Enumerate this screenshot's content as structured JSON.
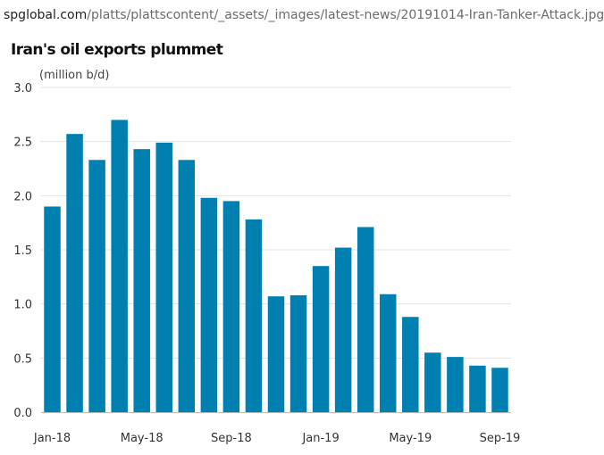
{
  "address_bar": {
    "host": "spglobal.com",
    "path": "/platts/plattscontent/_assets/_images/latest-news/20191014-Iran-Tanker-Attack.jpg"
  },
  "chart_data": {
    "type": "bar",
    "title": "Iran's oil exports plummet",
    "ylabel": "(million b/d)",
    "xlabel": "",
    "ylim": [
      0,
      3.0
    ],
    "yticks": [
      "0.0",
      "0.5",
      "1.0",
      "1.5",
      "2.0",
      "2.5",
      "3.0"
    ],
    "grid": true,
    "bar_color": "#0080b0",
    "categories": [
      "Jan-18",
      "Feb-18",
      "Mar-18",
      "Apr-18",
      "May-18",
      "Jun-18",
      "Jul-18",
      "Aug-18",
      "Sep-18",
      "Oct-18",
      "Nov-18",
      "Dec-18",
      "Jan-19",
      "Feb-19",
      "Mar-19",
      "Apr-19",
      "May-19",
      "Jun-19",
      "Jul-19",
      "Aug-19",
      "Sep-19"
    ],
    "tick_labels": [
      "Jan-18",
      "",
      "",
      "",
      "May-18",
      "",
      "",
      "",
      "Sep-18",
      "",
      "",
      "",
      "Jan-19",
      "",
      "",
      "",
      "May-19",
      "",
      "",
      "",
      "Sep-19"
    ],
    "values": [
      1.9,
      2.57,
      2.33,
      2.7,
      2.43,
      2.49,
      2.33,
      1.98,
      1.95,
      1.78,
      1.07,
      1.08,
      1.35,
      1.52,
      1.71,
      1.09,
      0.88,
      0.55,
      0.51,
      0.43,
      0.41
    ]
  }
}
